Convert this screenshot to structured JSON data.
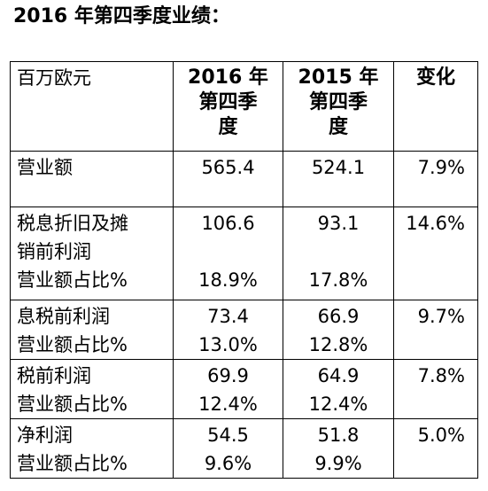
{
  "title": "2016 年第四季度业绩：",
  "table": {
    "header": {
      "label": "百万欧元",
      "q4_2016_lines": [
        "2016 年",
        "第四季",
        "度"
      ],
      "q4_2015_lines": [
        "2015 年",
        "第四季",
        "度"
      ],
      "change": "变化"
    },
    "rows": {
      "revenue": {
        "label": "营业额",
        "q4_2016": "565.4",
        "q4_2015": "524.1",
        "change": "7.9%"
      },
      "ebitda": {
        "label_lines": [
          "税息折旧及摊",
          "销前利润"
        ],
        "q4_2016": "106.6",
        "q4_2015": "93.1",
        "change": "14.6%",
        "margin_label": "营业额占比%",
        "margin_2016": "18.9%",
        "margin_2015": "17.8%"
      },
      "ebit": {
        "label": "息税前利润",
        "q4_2016": "73.4",
        "q4_2015": "66.9",
        "change": "9.7%",
        "margin_label": "营业额占比%",
        "margin_2016": "13.0%",
        "margin_2015": "12.8%"
      },
      "ebt": {
        "label": "税前利润",
        "q4_2016": "69.9",
        "q4_2015": "64.9",
        "change": "7.8%",
        "margin_label": "营业额占比%",
        "margin_2016": "12.4%",
        "margin_2015": "12.4%"
      },
      "net_income": {
        "label": "净利润",
        "q4_2016": "54.5",
        "q4_2015": "51.8",
        "change": "5.0%",
        "margin_label": "营业额占比%",
        "margin_2016": "9.6%",
        "margin_2015": "9.9%"
      }
    }
  }
}
